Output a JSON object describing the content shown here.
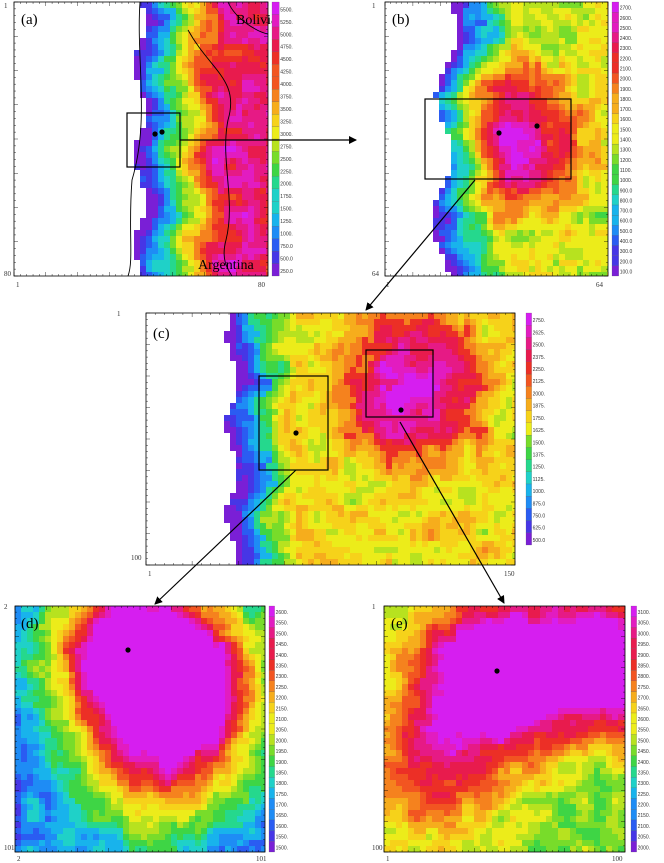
{
  "palette": [
    "#7a1fd6",
    "#4636e6",
    "#2a5cf2",
    "#1e8cf5",
    "#18b3ec",
    "#1fd1c8",
    "#25d88d",
    "#3ed545",
    "#78dc2a",
    "#b7e21f",
    "#ecec1a",
    "#f6d21a",
    "#f6ad1c",
    "#f5821e",
    "#f25521",
    "#ec2f26",
    "#e81b4d",
    "#e61a85",
    "#e21cc0",
    "#d61ef0"
  ],
  "panels": [
    {
      "id": "a",
      "label": "(a)",
      "style": "coast_a",
      "x_ticks": [
        "1",
        "80"
      ],
      "y_ticks": [
        "1",
        "80"
      ],
      "countries": [
        "Bolivia",
        "Argentina"
      ],
      "colorbar": [
        "250.0",
        "500.0",
        "750.0",
        "1000.",
        "1250.",
        "1500.",
        "1750.",
        "2000.",
        "2250.",
        "2500.",
        "2750.",
        "3000.",
        "3250.",
        "3500.",
        "3750.",
        "4000.",
        "4250.",
        "4500.",
        "4750.",
        "5000.",
        "5250.",
        "5500."
      ]
    },
    {
      "id": "b",
      "label": "(b)",
      "style": "coast_b",
      "x_ticks": [
        "1",
        "64"
      ],
      "y_ticks": [
        "1",
        "64"
      ],
      "colorbar": [
        "100.0",
        "200.0",
        "300.0",
        "400.0",
        "500.0",
        "600.0",
        "700.0",
        "800.0",
        "900.0",
        "1000.",
        "1100.",
        "1200.",
        "1300.",
        "1400.",
        "1500.",
        "1600.",
        "1700.",
        "1800.",
        "1900.",
        "2000.",
        "2100.",
        "2200.",
        "2300.",
        "2400.",
        "2500.",
        "2600.",
        "2700."
      ]
    },
    {
      "id": "c",
      "label": "(c)",
      "style": "coast_c",
      "x_ticks": [
        "1",
        "150"
      ],
      "y_ticks": [
        "1",
        "100"
      ],
      "colorbar": [
        "500.0",
        "625.0",
        "750.0",
        "875.0",
        "1000.",
        "1125.",
        "1250.",
        "1375.",
        "1500.",
        "1625.",
        "1750.",
        "1875.",
        "2000.",
        "2125.",
        "2250.",
        "2375.",
        "2500.",
        "2625.",
        "2750."
      ]
    },
    {
      "id": "d",
      "label": "(d)",
      "style": "field_d",
      "x_ticks": [
        "2",
        "101"
      ],
      "y_ticks": [
        "2",
        "101"
      ],
      "colorbar": [
        "1500.",
        "1550.",
        "1600.",
        "1650.",
        "1700.",
        "1750.",
        "1800.",
        "1850.",
        "1900.",
        "1950.",
        "2000.",
        "2050.",
        "2100.",
        "2150.",
        "2200.",
        "2250.",
        "2300.",
        "2350.",
        "2400.",
        "2450.",
        "2500.",
        "2550.",
        "2600."
      ]
    },
    {
      "id": "e",
      "label": "(e)",
      "style": "field_e",
      "x_ticks": [
        "1",
        "100"
      ],
      "y_ticks": [
        "1",
        "100"
      ],
      "colorbar": [
        "2000.",
        "2050.",
        "2100.",
        "2150.",
        "2200.",
        "2250.",
        "2300.",
        "2350.",
        "2400.",
        "2450.",
        "2500.",
        "2550.",
        "2600.",
        "2650.",
        "2700.",
        "2750.",
        "2800.",
        "2850.",
        "2900.",
        "2950.",
        "3000.",
        "3050.",
        "3100."
      ]
    }
  ]
}
